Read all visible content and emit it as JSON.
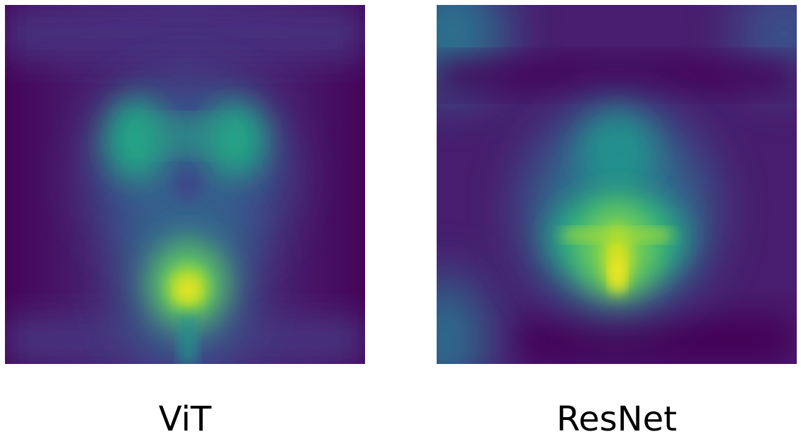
{
  "figure": {
    "colormap": "viridis",
    "colors": {
      "low": "#440154",
      "low_mid": "#472d7b",
      "mid": "#21918c",
      "high_mid": "#5ec962",
      "high": "#fde725"
    },
    "panels": [
      {
        "id": "vit",
        "label": "ViT"
      },
      {
        "id": "resnet",
        "label": "ResNet"
      }
    ]
  }
}
